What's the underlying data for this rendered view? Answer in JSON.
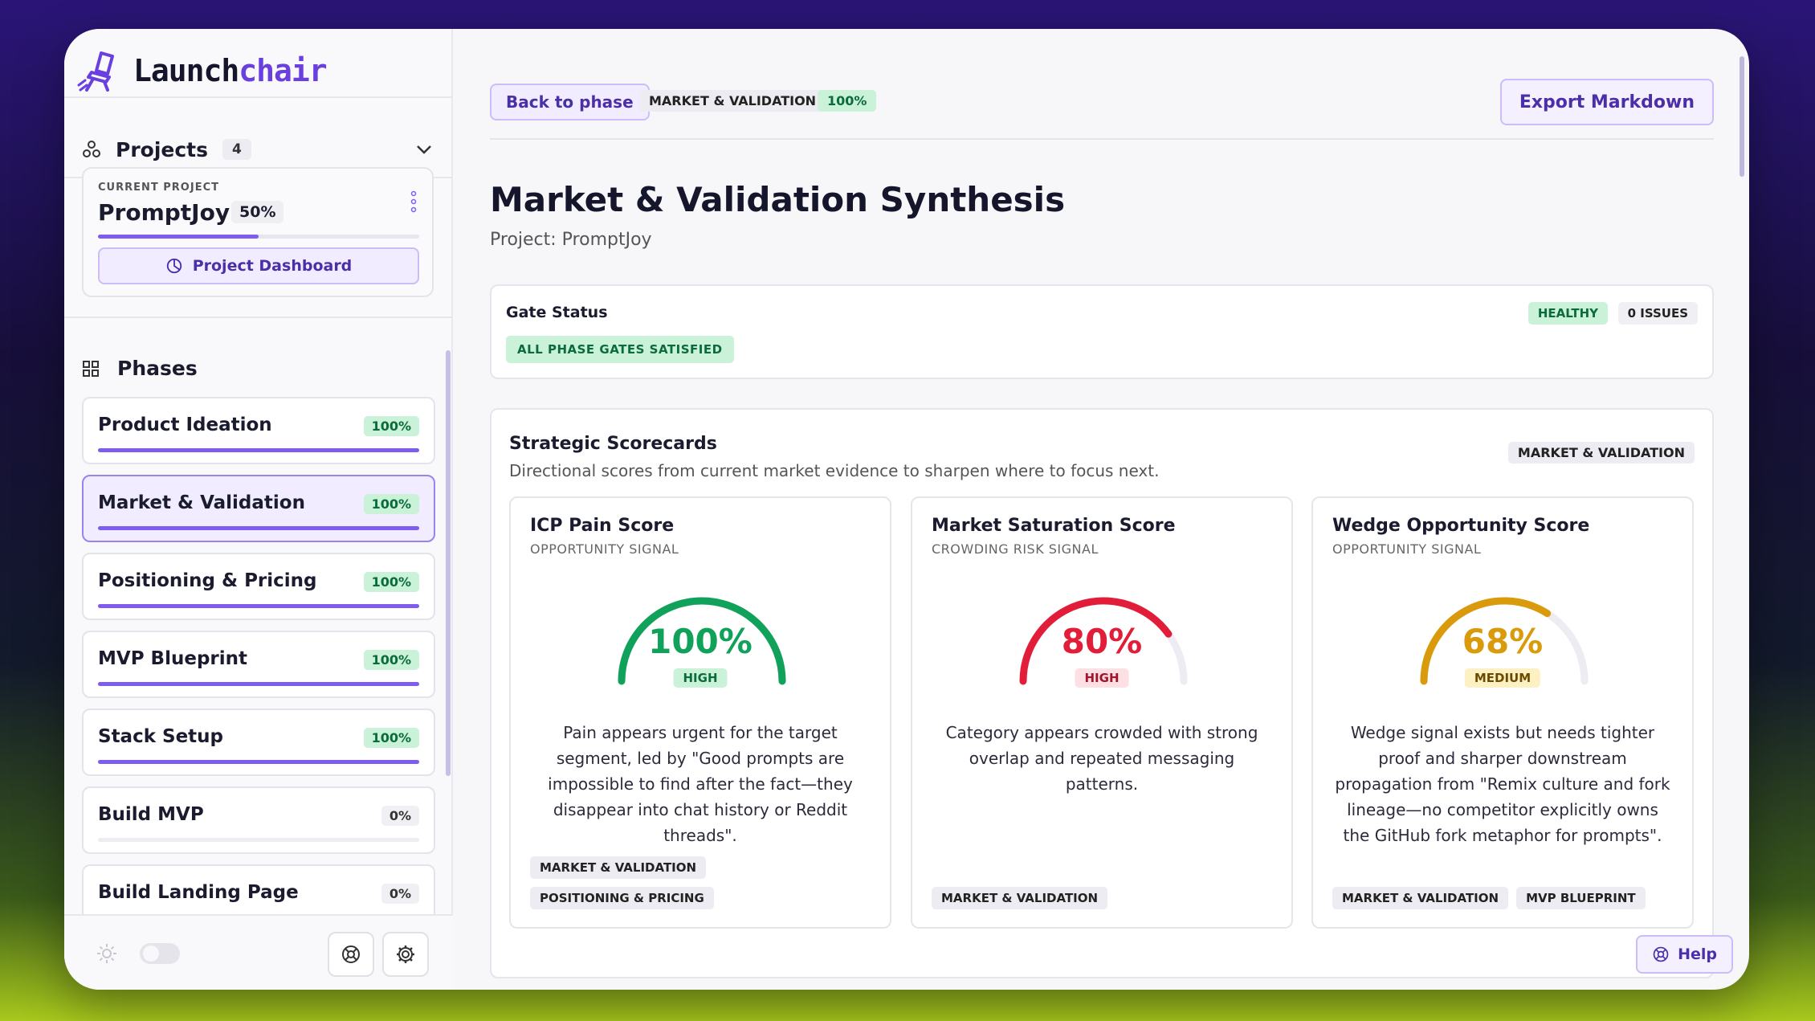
{
  "brand": {
    "part1": "Launch",
    "part2": "chair"
  },
  "sidebar": {
    "projects_label": "Projects",
    "projects_count": "4",
    "current_project": {
      "caption": "CURRENT PROJECT",
      "name": "PromptJoy",
      "percent": "50%",
      "progress": 0.5,
      "dashboard_label": "Project Dashboard"
    },
    "phases_label": "Phases",
    "phases": [
      {
        "name": "Product Ideation",
        "percent": "100%",
        "progress": 1.0
      },
      {
        "name": "Market & Validation",
        "percent": "100%",
        "progress": 1.0,
        "active": true
      },
      {
        "name": "Positioning & Pricing",
        "percent": "100%",
        "progress": 1.0
      },
      {
        "name": "MVP Blueprint",
        "percent": "100%",
        "progress": 1.0
      },
      {
        "name": "Stack Setup",
        "percent": "100%",
        "progress": 1.0
      },
      {
        "name": "Build MVP",
        "percent": "0%",
        "progress": 0
      },
      {
        "name": "Build Landing Page",
        "percent": "0%",
        "progress": 0
      }
    ]
  },
  "topbar": {
    "back_label": "Back to phase",
    "phase_tag": "MARKET & VALIDATION",
    "phase_percent": "100%",
    "export_label": "Export Markdown"
  },
  "page": {
    "title": "Market & Validation Synthesis",
    "subtitle": "Project: PromptJoy"
  },
  "gate": {
    "title": "Gate Status",
    "satisfied": "ALL PHASE GATES SATISFIED",
    "health": "HEALTHY",
    "issues": "0 ISSUES"
  },
  "scorecards": {
    "title": "Strategic Scorecards",
    "description": "Directional scores from current market evidence to sharpen where to focus next.",
    "tag": "MARKET & VALIDATION",
    "cards": [
      {
        "title": "ICP Pain Score",
        "signal": "OPPORTUNITY SIGNAL",
        "value": "100%",
        "score": 1.0,
        "level": "HIGH",
        "color": "#10a15a",
        "level_bg": "#c9f2d9",
        "level_fg": "#0c6b3a",
        "description": "Pain appears urgent for the target segment, led by \"Good prompts are impossible to find after the fact—they disappear into chat history or Reddit threads\".",
        "tags": [
          "MARKET & VALIDATION",
          "POSITIONING & PRICING"
        ]
      },
      {
        "title": "Market Saturation Score",
        "signal": "CROWDING RISK SIGNAL",
        "value": "80%",
        "score": 0.8,
        "level": "HIGH",
        "color": "#e11d3a",
        "level_bg": "#fde0e4",
        "level_fg": "#a3132a",
        "description": "Category appears crowded with strong overlap and repeated messaging patterns.",
        "tags": [
          "MARKET & VALIDATION"
        ]
      },
      {
        "title": "Wedge Opportunity Score",
        "signal": "OPPORTUNITY SIGNAL",
        "value": "68%",
        "score": 0.68,
        "level": "MEDIUM",
        "color": "#d99a0b",
        "level_bg": "#fdf0c2",
        "level_fg": "#6b4a00",
        "description": "Wedge signal exists but needs tighter proof and sharper downstream propagation from \"Remix culture and fork lineage—no competitor explicitly owns the GitHub fork metaphor for prompts\".",
        "tags": [
          "MARKET & VALIDATION",
          "MVP BLUEPRINT"
        ]
      }
    ]
  },
  "help_label": "Help"
}
